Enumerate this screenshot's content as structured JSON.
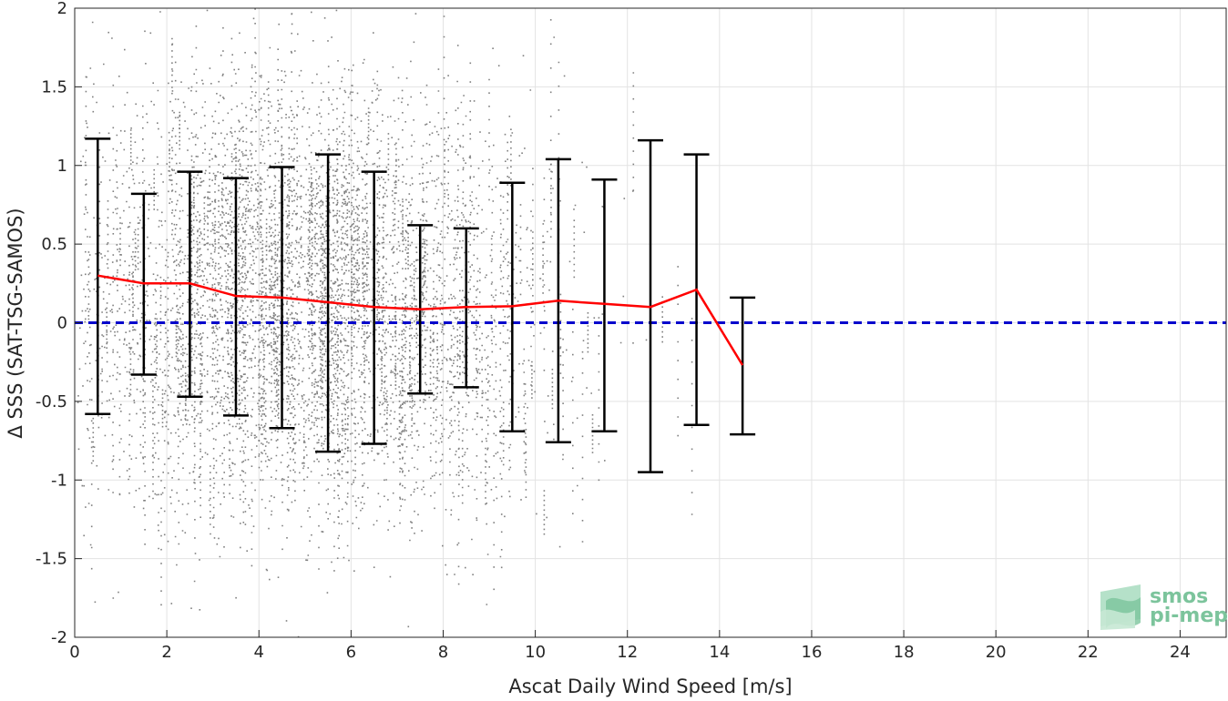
{
  "chart_data": {
    "type": "scatter",
    "xlabel": "Ascat Daily Wind Speed [m/s]",
    "ylabel": "Δ SSS (SAT-TSG-SAMOS)",
    "xlim": [
      0,
      25
    ],
    "ylim": [
      -2,
      2
    ],
    "x_ticks": [
      0,
      2,
      4,
      6,
      8,
      10,
      12,
      14,
      16,
      18,
      20,
      22,
      24
    ],
    "x_tick_labels": [
      "0",
      "2",
      "4",
      "6",
      "8",
      "10",
      "12",
      "14",
      "16",
      "18",
      "20",
      "22",
      "24"
    ],
    "y_ticks": [
      -2,
      -1.5,
      -1,
      -0.5,
      0,
      0.5,
      1,
      1.5,
      2
    ],
    "y_tick_labels": [
      "-2",
      "-1.5",
      "-1",
      "-0.5",
      "0",
      "0.5",
      "1",
      "1.5",
      "2"
    ],
    "grid": true,
    "scatter_color": "#808080",
    "scatter_description_points_range_x": [
      0,
      14.8
    ],
    "mean_line": {
      "color": "#ff0000",
      "x": [
        0.5,
        1.5,
        2.5,
        3.5,
        4.5,
        5.5,
        6.5,
        7.5,
        8.5,
        9.5,
        10.5,
        11.5,
        12.5,
        13.5,
        14.5
      ],
      "y": [
        0.3,
        0.25,
        0.25,
        0.17,
        0.16,
        0.13,
        0.1,
        0.085,
        0.1,
        0.105,
        0.14,
        0.12,
        0.1,
        0.21,
        -0.27
      ]
    },
    "error_bars": {
      "color": "#000000",
      "x": [
        0.5,
        1.5,
        2.5,
        3.5,
        4.5,
        5.5,
        6.5,
        7.5,
        8.5,
        9.5,
        10.5,
        11.5,
        12.5,
        13.5,
        14.5
      ],
      "upper": [
        1.17,
        0.82,
        0.96,
        0.92,
        0.99,
        1.07,
        0.96,
        0.62,
        0.6,
        0.89,
        1.04,
        0.91,
        1.16,
        1.07,
        0.16
      ],
      "lower": [
        -0.58,
        -0.33,
        -0.47,
        -0.59,
        -0.67,
        -0.82,
        -0.77,
        -0.45,
        -0.41,
        -0.69,
        -0.76,
        -0.69,
        -0.95,
        -0.65,
        -0.71
      ]
    },
    "reference_line": {
      "y": 0,
      "color": "#0000cc",
      "style": "dashed"
    },
    "logo": {
      "line1": "smos",
      "line2": "pi-mep"
    }
  }
}
